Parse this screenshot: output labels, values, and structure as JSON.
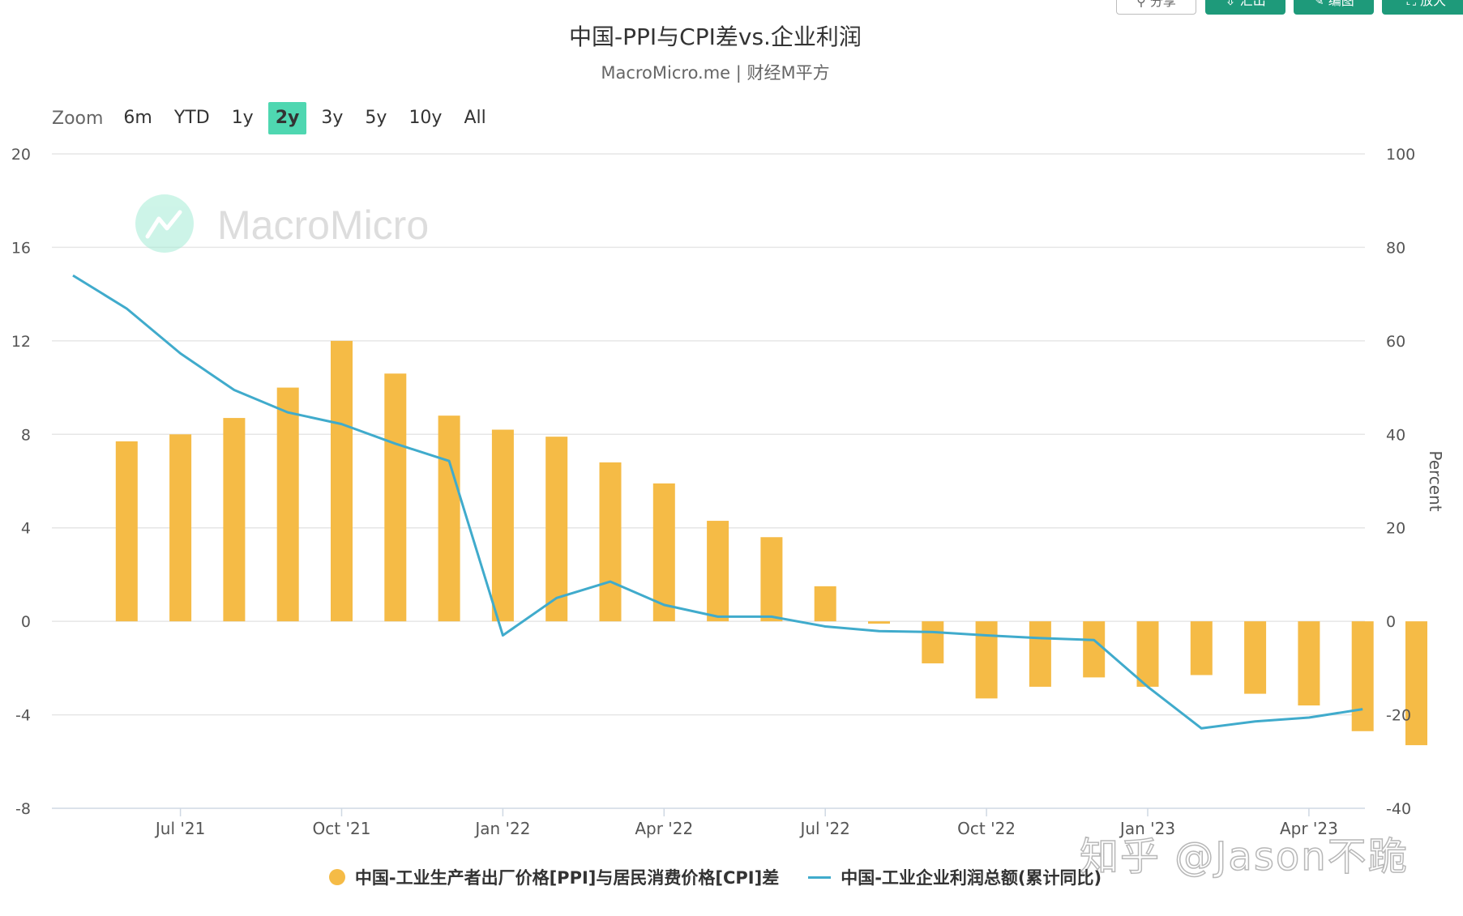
{
  "toolbar": {
    "buttons": [
      {
        "icon": "share-icon",
        "label": "分享",
        "style": "outline"
      },
      {
        "icon": "download-icon",
        "label": "汇出",
        "style": "solid"
      },
      {
        "icon": "edit-icon",
        "label": "编图",
        "style": "solid"
      },
      {
        "icon": "expand-icon",
        "label": "放大",
        "style": "solid"
      }
    ]
  },
  "header": {
    "title": "中国-PPI与CPI差vs.企业利润",
    "subtitle": "MacroMicro.me | 财经M平方"
  },
  "zoom": {
    "label": "Zoom",
    "options": [
      "6m",
      "YTD",
      "1y",
      "2y",
      "3y",
      "5y",
      "10y",
      "All"
    ],
    "selected": "2y"
  },
  "watermark": {
    "logo_text": "MacroMicro",
    "zh_text": "知乎 @Jason不跪"
  },
  "colors": {
    "bar": "#f5bb46",
    "line": "#40abcc",
    "accent": "#4fd7b1",
    "button": "#1e9a7a"
  },
  "chart_data": {
    "type": "bar",
    "categories": [
      "2021-06",
      "2021-07",
      "2021-08",
      "2021-09",
      "2021-10",
      "2021-11",
      "2021-12",
      "2022-01",
      "2022-02",
      "2022-03",
      "2022-04",
      "2022-05",
      "2022-06",
      "2022-07",
      "2022-08",
      "2022-09",
      "2022-10",
      "2022-11",
      "2022-12",
      "2023-01",
      "2023-02",
      "2023-03",
      "2023-04",
      "2023-05",
      "2023-06"
    ],
    "x_tick_labels": [
      "Jul '21",
      "Oct '21",
      "Jan '22",
      "Apr '22",
      "Jul '22",
      "Oct '22",
      "Jan '23",
      "Apr '23"
    ],
    "x_tick_months": [
      "2021-07",
      "2021-10",
      "2022-01",
      "2022-04",
      "2022-07",
      "2022-10",
      "2023-01",
      "2023-04"
    ],
    "left_axis": {
      "ylim": [
        -8,
        20
      ],
      "ticks": [
        20,
        16,
        12,
        8,
        4,
        0,
        -4,
        -8
      ],
      "label": ""
    },
    "right_axis": {
      "ylim": [
        -40,
        100
      ],
      "ticks": [
        100,
        80,
        60,
        40,
        20,
        0,
        -20,
        -40
      ],
      "label": "Percent"
    },
    "series": [
      {
        "name": "中国-工业生产者出厂价格[PPI]与居民消费价格[CPI]差",
        "type": "bar",
        "axis": "left",
        "values": [
          7.7,
          8.0,
          8.7,
          10.0,
          12.0,
          10.6,
          8.8,
          8.2,
          7.9,
          6.8,
          5.9,
          4.3,
          3.6,
          1.5,
          -0.1,
          -1.8,
          -3.3,
          -2.8,
          -2.4,
          -2.8,
          -2.3,
          -3.1,
          -3.6,
          -4.7,
          -5.3
        ]
      },
      {
        "name": "中国-工业企业利润总额(累计同比)",
        "type": "line",
        "axis": "right",
        "x": [
          "2021-05",
          "2021-06",
          "2021-07",
          "2021-08",
          "2021-09",
          "2021-10",
          "2021-11",
          "2021-12",
          "2022-01",
          "2022-02",
          "2022-03",
          "2022-04",
          "2022-05",
          "2022-06",
          "2022-07",
          "2022-08",
          "2022-09",
          "2022-10",
          "2022-11",
          "2022-12",
          "2023-01",
          "2023-02",
          "2023-03",
          "2023-04",
          "2023-05"
        ],
        "values": [
          74.0,
          66.9,
          57.3,
          49.5,
          44.7,
          42.2,
          38.0,
          34.3,
          -3.0,
          5.0,
          8.5,
          3.5,
          1.0,
          1.0,
          -1.1,
          -2.1,
          -2.3,
          -3.0,
          -3.6,
          -4.0,
          -14.0,
          -22.9,
          -21.4,
          -20.6,
          -18.8
        ]
      }
    ],
    "grid": true,
    "legend": "bottom-center"
  }
}
